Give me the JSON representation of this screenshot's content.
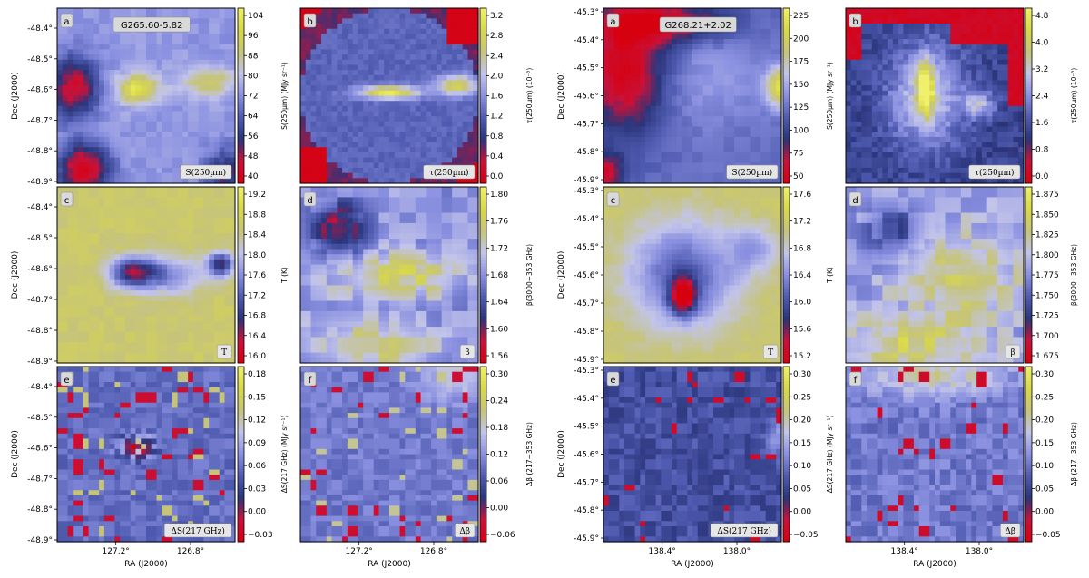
{
  "figure": {
    "panel_order": [
      "S(250µm)",
      "τ(250µm)",
      "T",
      "β",
      "ΔS(217 GHz)",
      "Δβ"
    ],
    "colormap": [
      "#d7000f",
      "#c8123a",
      "#2a347a",
      "#4f5bb0",
      "#8a90e0",
      "#c2c4ea",
      "#c6c47a",
      "#d8d84a",
      "#f0f06a"
    ]
  },
  "chart_data": [
    {
      "type": "heatmap",
      "field": "G265.60-5.82",
      "label": "G265.60-5.82",
      "xlabel": "RA (J2000)",
      "ylabel": "Dec (J2000)",
      "xticks": [
        "127.2°",
        "126.8°"
      ],
      "yticks": [
        "-48.4°",
        "-48.5°",
        "-48.6°",
        "-48.7°",
        "-48.8°",
        "-48.9°"
      ],
      "panels": [
        {
          "letter": "a",
          "name": "S(250µm)",
          "cbar_label": "S(250µm) (MJy sr⁻¹)",
          "ticks": [
            "104",
            "96",
            "88",
            "80",
            "72",
            "64",
            "56",
            "48",
            "40"
          ]
        },
        {
          "letter": "b",
          "name": "τ(250µm)",
          "cbar_label": "τ(250µm) (10⁻³)",
          "ticks": [
            "3.2",
            "2.8",
            "2.4",
            "2.0",
            "1.6",
            "1.2",
            "0.8",
            "0.4",
            "0.0"
          ]
        },
        {
          "letter": "c",
          "name": "T",
          "cbar_label": "T (K)",
          "ticks": [
            "19.2",
            "18.8",
            "18.4",
            "18.0",
            "17.6",
            "17.2",
            "16.8",
            "16.4",
            "16.0"
          ]
        },
        {
          "letter": "d",
          "name": "β",
          "cbar_label": "β(3000−353 GHz)",
          "ticks": [
            "1.80",
            "1.76",
            "1.72",
            "1.68",
            "1.64",
            "1.60",
            "1.56"
          ]
        },
        {
          "letter": "e",
          "name": "ΔS(217 GHz)",
          "cbar_label": "ΔS(217 GHz) (MJy sr⁻¹)",
          "ticks": [
            "0.18",
            "0.15",
            "0.12",
            "0.09",
            "0.06",
            "0.03",
            "0.00",
            "−0.03"
          ]
        },
        {
          "letter": "f",
          "name": "Δβ",
          "cbar_label": "Δβ (217−353 GHz)",
          "ticks": [
            "0.30",
            "0.24",
            "0.18",
            "0.12",
            "0.06",
            "0.00",
            "−0.06"
          ]
        }
      ]
    },
    {
      "type": "heatmap",
      "field": "G268.21+2.02",
      "label": "G268.21+2.02",
      "xlabel": "RA (J2000)",
      "ylabel": "Dec (J2000)",
      "xticks": [
        "138.4°",
        "138.0°"
      ],
      "yticks": [
        "-45.3°",
        "-45.4°",
        "-45.5°",
        "-45.6°",
        "-45.7°",
        "-45.8°",
        "-45.9°"
      ],
      "panels": [
        {
          "letter": "a",
          "name": "S(250µm)",
          "cbar_label": "S(250µm) (MJy sr⁻¹)",
          "ticks": [
            "225",
            "200",
            "175",
            "150",
            "125",
            "100",
            "75",
            "50"
          ]
        },
        {
          "letter": "b",
          "name": "τ(250µm)",
          "cbar_label": "τ(250µm) (10⁻³)",
          "ticks": [
            "4.8",
            "4.0",
            "3.2",
            "2.4",
            "1.6",
            "0.8",
            "0.0"
          ]
        },
        {
          "letter": "c",
          "name": "T",
          "cbar_label": "T (K)",
          "ticks": [
            "17.6",
            "17.2",
            "16.8",
            "16.4",
            "16.0",
            "15.6",
            "15.2"
          ]
        },
        {
          "letter": "d",
          "name": "β",
          "cbar_label": "β(3000−353 GHz)",
          "ticks": [
            "1.875",
            "1.850",
            "1.825",
            "1.800",
            "1.775",
            "1.750",
            "1.725",
            "1.700",
            "1.675"
          ]
        },
        {
          "letter": "e",
          "name": "ΔS(217 GHz)",
          "cbar_label": "ΔS(217 GHz) (MJy sr⁻¹)",
          "ticks": [
            "0.30",
            "0.25",
            "0.20",
            "0.15",
            "0.10",
            "0.05",
            "0.00",
            "−0.05"
          ]
        },
        {
          "letter": "f",
          "name": "Δβ",
          "cbar_label": "Δβ (217−353 GHz)",
          "ticks": [
            "0.30",
            "0.25",
            "0.20",
            "0.15",
            "0.10",
            "0.05",
            "0.00",
            "−0.05"
          ]
        }
      ]
    }
  ]
}
